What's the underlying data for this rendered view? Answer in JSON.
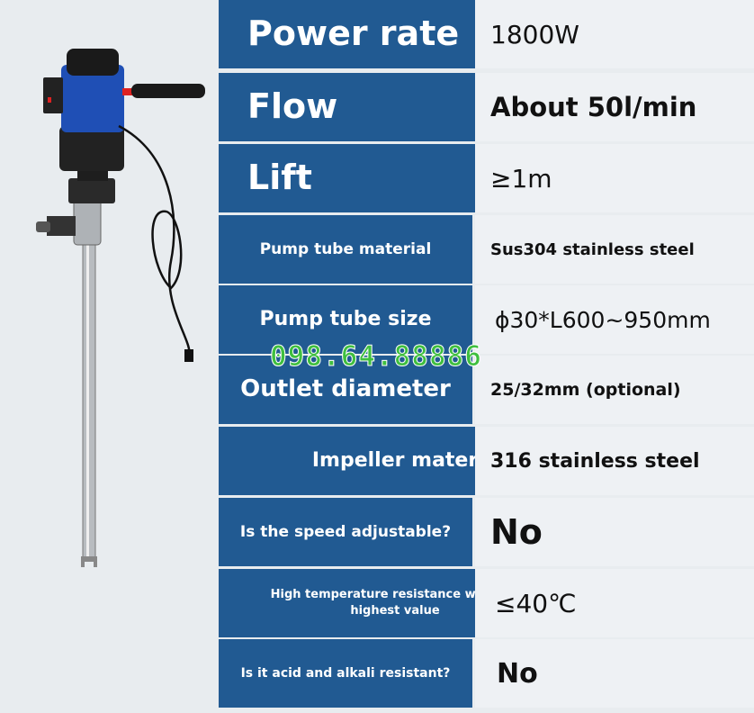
{
  "specs": [
    {
      "label": "Power rate",
      "value": "1800W"
    },
    {
      "label": "Flow",
      "value": "About 50l/min"
    },
    {
      "label": "Lift",
      "value": "≥1m"
    },
    {
      "label": "Pump tube material",
      "value": "Sus304 stainless steel"
    },
    {
      "label": "Pump tube size",
      "value": "ϕ30*L600~950mm"
    },
    {
      "label": "Outlet diameter",
      "value": "25/32mm (optional)"
    },
    {
      "label": "Impeller material",
      "value": "316 stainless steel"
    },
    {
      "label": "Is the speed adjustable?",
      "value": "No"
    },
    {
      "label": "High temperature resistance with the highest value",
      "value": "≤40℃"
    },
    {
      "label": "Is it acid and alkali resistant?",
      "value": "No"
    }
  ],
  "watermark_phone": "098.64.88886",
  "colors": {
    "label_bg": "#215a92",
    "value_bg": "#eef1f4",
    "watermark": "#3fbf3f"
  }
}
